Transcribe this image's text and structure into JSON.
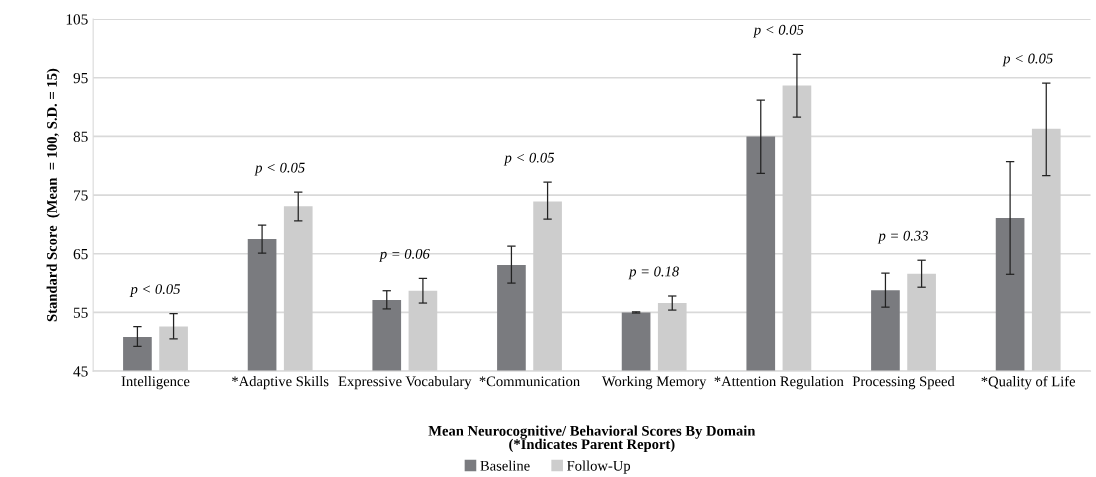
{
  "chart_data": {
    "type": "bar",
    "categories": [
      "Intelligence",
      "*Adaptive Skills",
      "Expressive Vocabulary",
      "*Communication",
      "Working Memory",
      "*Attention Regulation",
      "Processing Speed",
      "*Quality of Life"
    ],
    "series": [
      {
        "name": "Baseline",
        "color": "#7a7b7f",
        "values": [
          50.8,
          67.5,
          57.1,
          63.1,
          55.0,
          85.0,
          58.8,
          71.1
        ],
        "errors": [
          [
            49.2,
            52.6
          ],
          [
            65.1,
            69.9
          ],
          [
            55.6,
            58.7
          ],
          [
            60.0,
            66.3
          ],
          [
            54.9,
            55.1
          ],
          [
            78.7,
            91.2
          ],
          [
            55.9,
            61.7
          ],
          [
            61.5,
            80.7
          ]
        ]
      },
      {
        "name": "Follow-Up",
        "color": "#cdcdcd",
        "values": [
          52.6,
          73.1,
          58.7,
          73.9,
          56.6,
          93.7,
          61.6,
          86.3
        ],
        "errors": [
          [
            50.5,
            54.8
          ],
          [
            70.6,
            75.5
          ],
          [
            56.6,
            60.8
          ],
          [
            70.9,
            77.2
          ],
          [
            55.4,
            57.8
          ],
          [
            88.3,
            99.0
          ],
          [
            59.3,
            63.9
          ],
          [
            78.3,
            94.1
          ]
        ]
      }
    ],
    "ylim": [
      45,
      105
    ],
    "yticks": [
      45,
      55,
      65,
      75,
      85,
      95,
      105
    ],
    "ylabel": "Standard Score  (Mean  = 100, S.D. = 15)",
    "xlabel": "Mean Neurocognitive/ Behavioral Scores By Domain\n(*Indicates Parent Report)",
    "annotations": [
      "p < 0.05",
      "p < 0.05",
      "p = 0.06",
      "p < 0.05",
      "p = 0.18",
      "p < 0.05",
      "p = 0.33",
      "p < 0.05"
    ],
    "grid": "y",
    "legend": "bottom"
  }
}
